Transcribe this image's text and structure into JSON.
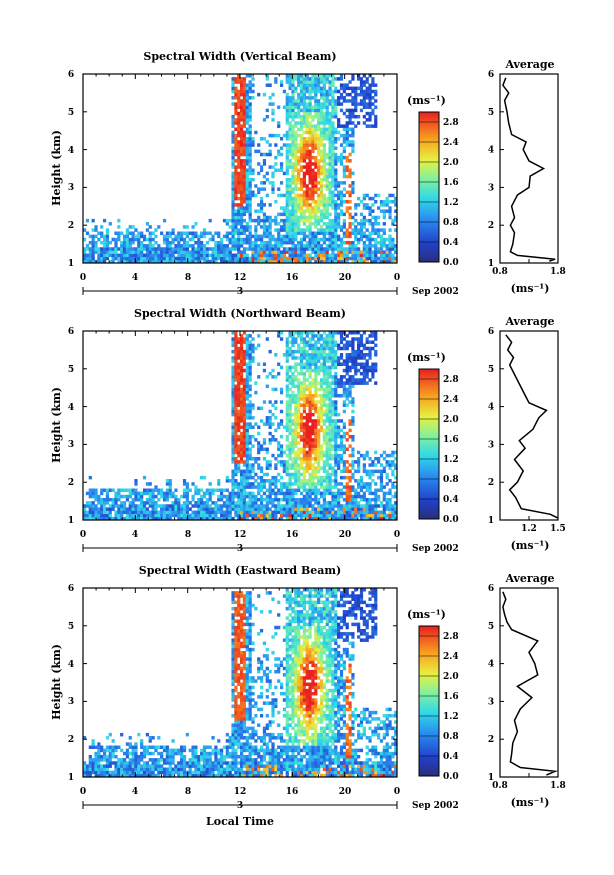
{
  "figure": {
    "x_axis_title": "Local Time",
    "date_label": "3",
    "date_suffix": "Sep 2002",
    "y_axis_title": "Height (km)",
    "average_title": "Average",
    "colorbar_unit": "(ms⁻¹)",
    "average_unit": "(ms⁻¹)"
  },
  "chart_data": [
    {
      "type": "heatmap",
      "title": "Spectral Width (Vertical Beam)",
      "xlabel": "",
      "ylabel": "Height (km)",
      "xlim": [
        0,
        24
      ],
      "xticks": [
        "0",
        "4",
        "8",
        "12",
        "16",
        "20",
        "0"
      ],
      "ylim": [
        1,
        6
      ],
      "yticks": [
        "1",
        "2",
        "3",
        "4",
        "5",
        "6"
      ],
      "colorbar": {
        "ticks": [
          "0.0",
          "0.4",
          "0.8",
          "1.2",
          "1.6",
          "2.0",
          "2.4",
          "2.8"
        ],
        "range": [
          0,
          3.0
        ]
      },
      "average_profile": {
        "title": "Average",
        "xlim": [
          0.8,
          1.8
        ],
        "xticks": [
          "0.8",
          "",
          "1.8"
        ],
        "x_tick_marks": [
          0.8,
          1.3,
          1.8
        ],
        "ylim": [
          1,
          6
        ],
        "yticks": [
          "1",
          "2",
          "3",
          "4",
          "5",
          "6"
        ],
        "heights": [
          1.05,
          1.1,
          1.2,
          1.3,
          1.5,
          1.8,
          2.0,
          2.2,
          2.5,
          2.8,
          3.0,
          3.3,
          3.5,
          3.7,
          4.0,
          4.2,
          4.4,
          4.7,
          5.0,
          5.3,
          5.5,
          5.7,
          5.9
        ],
        "values": [
          1.65,
          1.75,
          1.1,
          0.98,
          1.02,
          1.05,
          0.98,
          1.05,
          1.0,
          1.1,
          1.3,
          1.32,
          1.55,
          1.3,
          1.2,
          1.25,
          1.0,
          0.95,
          0.92,
          0.88,
          0.95,
          0.85,
          0.9
        ]
      }
    },
    {
      "type": "heatmap",
      "title": "Spectral Width (Northward Beam)",
      "xlabel": "",
      "ylabel": "Height (km)",
      "xlim": [
        0,
        24
      ],
      "xticks": [
        "0",
        "4",
        "8",
        "12",
        "16",
        "20",
        "0"
      ],
      "ylim": [
        1,
        6
      ],
      "yticks": [
        "1",
        "2",
        "3",
        "4",
        "5",
        "6"
      ],
      "colorbar": {
        "ticks": [
          "0.0",
          "0.4",
          "0.8",
          "1.2",
          "1.6",
          "2.0",
          "2.4",
          "2.8"
        ],
        "range": [
          0,
          3.0
        ]
      },
      "average_profile": {
        "title": "Average",
        "xlim": [
          0.9,
          1.5
        ],
        "xticks": [
          "1.2",
          "1.5"
        ],
        "x_tick_marks": [
          1.2,
          1.5
        ],
        "ylim": [
          1,
          6
        ],
        "yticks": [
          "1",
          "2",
          "3",
          "4",
          "5",
          "6"
        ],
        "heights": [
          1.05,
          1.15,
          1.3,
          1.6,
          1.8,
          2.0,
          2.3,
          2.6,
          2.9,
          3.1,
          3.4,
          3.7,
          3.9,
          4.1,
          4.4,
          4.8,
          5.1,
          5.3,
          5.5,
          5.7,
          5.9
        ],
        "values": [
          1.5,
          1.42,
          1.12,
          1.06,
          1.0,
          1.08,
          1.14,
          1.05,
          1.16,
          1.1,
          1.24,
          1.3,
          1.38,
          1.2,
          1.14,
          1.06,
          1.0,
          1.04,
          0.98,
          1.02,
          0.96
        ]
      }
    },
    {
      "type": "heatmap",
      "title": "Spectral Width (Eastward Beam)",
      "xlabel": "Local Time",
      "ylabel": "Height (km)",
      "xlim": [
        0,
        24
      ],
      "xticks": [
        "0",
        "4",
        "8",
        "12",
        "16",
        "20",
        "0"
      ],
      "ylim": [
        1,
        6
      ],
      "yticks": [
        "1",
        "2",
        "3",
        "4",
        "5",
        "6"
      ],
      "colorbar": {
        "ticks": [
          "0.0",
          "0.4",
          "0.8",
          "1.2",
          "1.6",
          "2.0",
          "2.4",
          "2.8"
        ],
        "range": [
          0,
          3.0
        ]
      },
      "average_profile": {
        "title": "Average",
        "xlim": [
          0.8,
          1.8
        ],
        "xticks": [
          "0.8",
          "1.8"
        ],
        "x_tick_marks": [
          0.8,
          1.3,
          1.8
        ],
        "ylim": [
          1,
          6
        ],
        "yticks": [
          "1",
          "2",
          "3",
          "4",
          "5",
          "6"
        ],
        "heights": [
          1.05,
          1.15,
          1.25,
          1.4,
          1.6,
          1.9,
          2.2,
          2.5,
          2.8,
          3.1,
          3.4,
          3.7,
          4.0,
          4.3,
          4.6,
          4.9,
          5.1,
          5.3,
          5.5,
          5.7,
          5.9
        ],
        "values": [
          1.6,
          1.75,
          1.15,
          0.98,
          1.0,
          1.02,
          1.1,
          1.05,
          1.15,
          1.35,
          1.1,
          1.45,
          1.4,
          1.3,
          1.45,
          1.0,
          0.92,
          0.88,
          0.85,
          0.9,
          0.85
        ]
      }
    }
  ]
}
